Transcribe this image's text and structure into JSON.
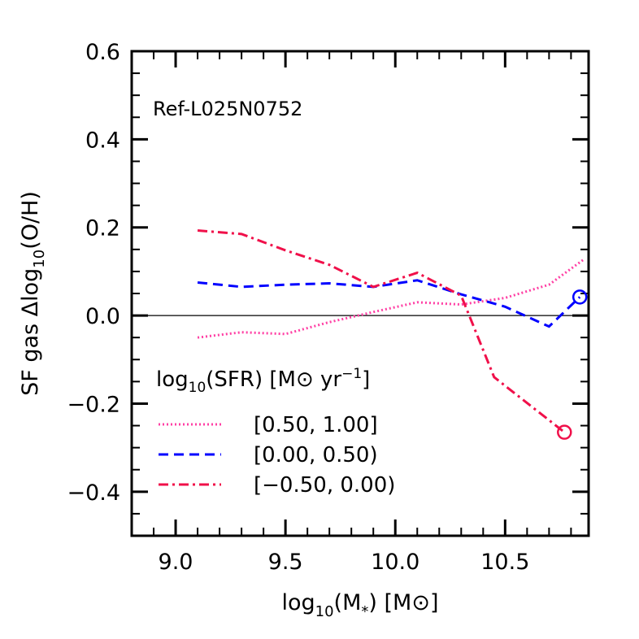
{
  "chart_data": {
    "type": "line",
    "annotation": "Ref-L025N0752",
    "xlabel": "log10(M*) [M⊙]",
    "ylabel": "SF gas Δlog10(O/H)",
    "xlim": [
      8.8,
      10.88
    ],
    "ylim": [
      -0.5,
      0.6
    ],
    "xticks": [
      9.0,
      9.5,
      10.0,
      10.5
    ],
    "xtick_labels": [
      "9.0",
      "9.5",
      "10.0",
      "10.5"
    ],
    "yticks": [
      0.6,
      0.4,
      0.2,
      0.0,
      -0.2,
      -0.4
    ],
    "ytick_labels": [
      "0.6",
      "0.4",
      "0.2",
      "0.0",
      "−0.2",
      "−0.4"
    ],
    "grid": false,
    "reference_line_y": 0.0,
    "legend_title": "log10(SFR) [M⊙ yr⁻¹]",
    "legend_position": "bottom-left",
    "series": [
      {
        "name": "[0.50, 1.00]",
        "color": "#ff3fa4",
        "linestyle": "dotted",
        "x": [
          9.1,
          9.3,
          9.5,
          9.7,
          9.9,
          10.1,
          10.3,
          10.5,
          10.7,
          10.86
        ],
        "y": [
          -0.05,
          -0.038,
          -0.042,
          -0.015,
          0.008,
          0.03,
          0.025,
          0.04,
          0.07,
          0.128
        ],
        "end_marker": null
      },
      {
        "name": "[0.00, 0.50)",
        "color": "#0000ff",
        "linestyle": "dashed",
        "x": [
          9.1,
          9.3,
          9.5,
          9.7,
          9.9,
          10.1,
          10.3,
          10.5,
          10.7,
          10.84
        ],
        "y": [
          0.075,
          0.065,
          0.07,
          0.073,
          0.065,
          0.08,
          0.048,
          0.02,
          -0.025,
          0.042
        ],
        "end_marker": "circle"
      },
      {
        "name": "[−0.50, 0.00)",
        "color": "#f0104a",
        "linestyle": "dashdot",
        "x": [
          9.1,
          9.3,
          9.5,
          9.7,
          9.9,
          10.1,
          10.3,
          10.45,
          10.77
        ],
        "y": [
          0.193,
          0.185,
          0.148,
          0.115,
          0.065,
          0.097,
          0.045,
          -0.14,
          -0.265
        ],
        "end_marker": "circle"
      }
    ]
  }
}
